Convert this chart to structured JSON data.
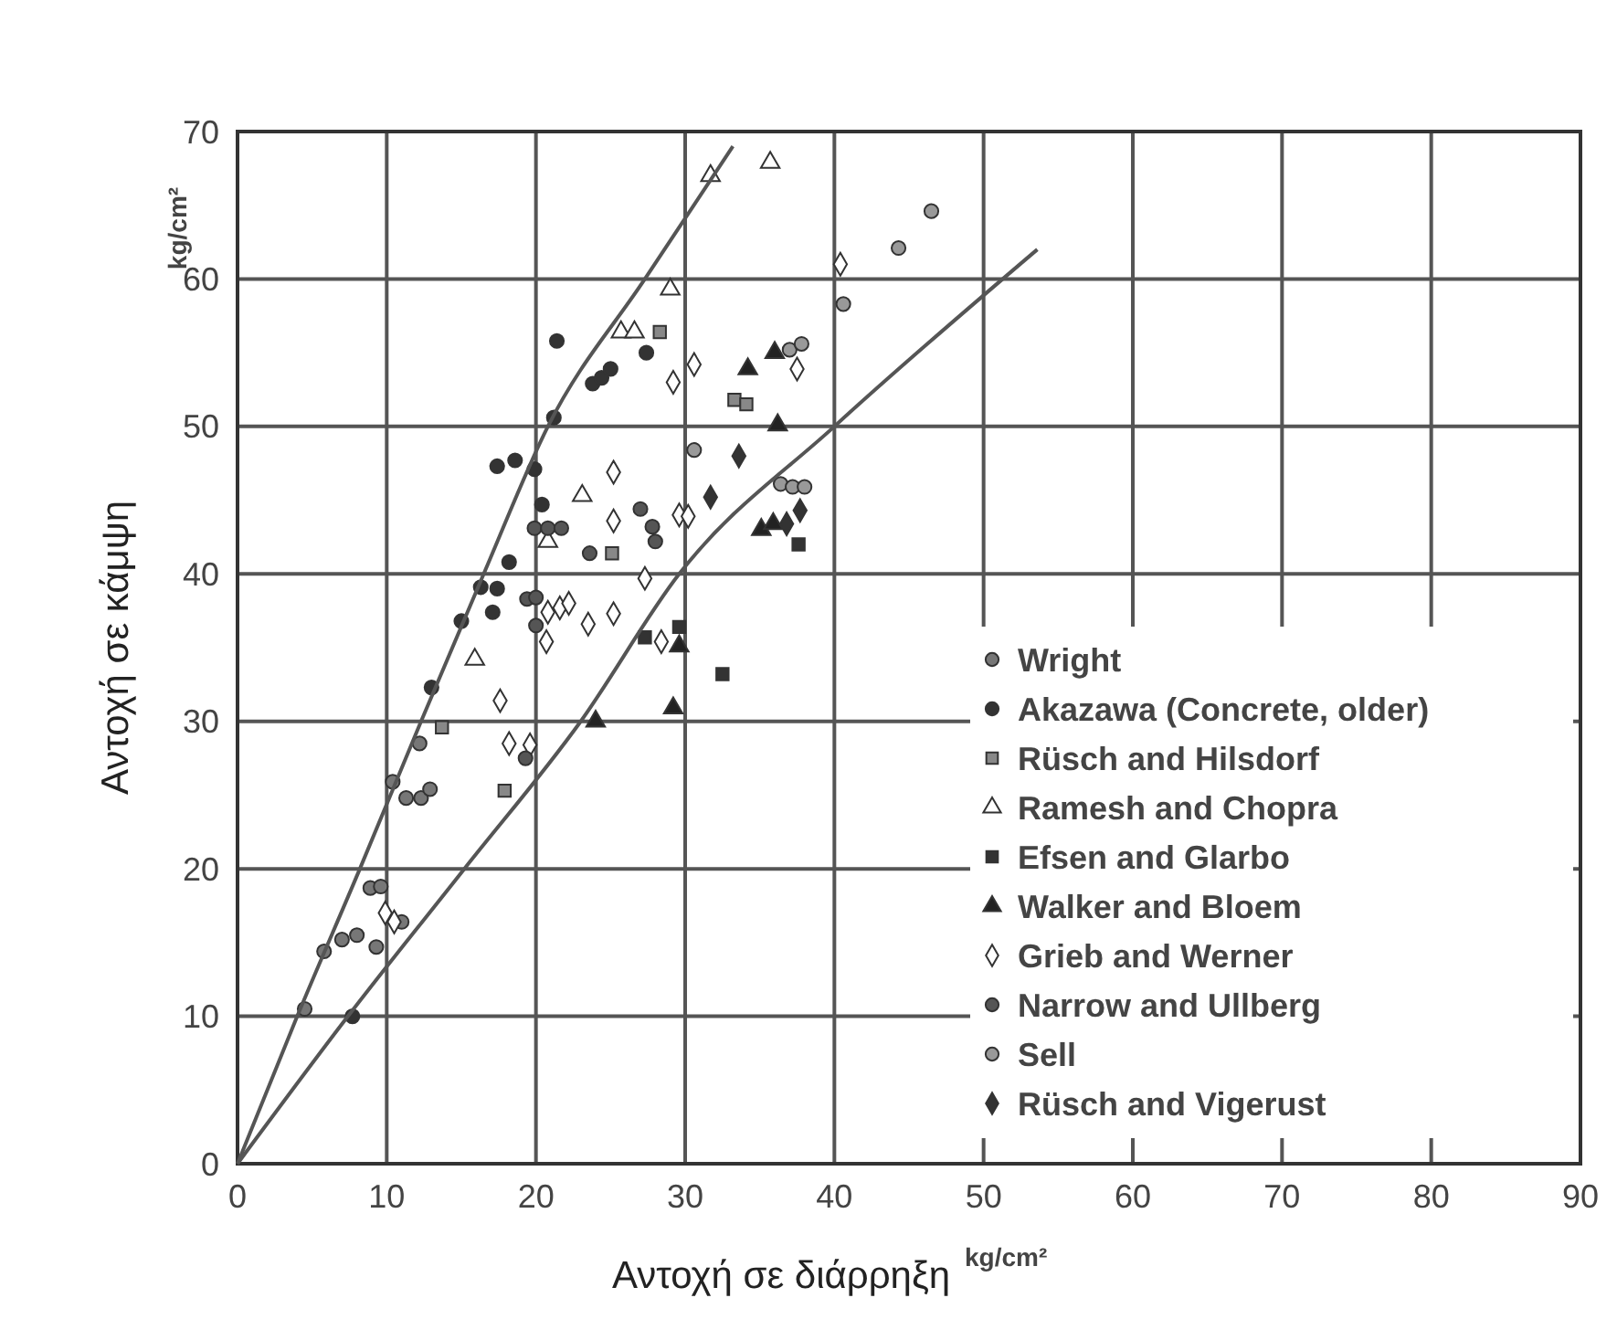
{
  "chart_data": {
    "type": "scatter",
    "xlabel": "Αντοχή σε διάρρηξη",
    "ylabel": "Αντοχή σε κάμψη",
    "annotations": [
      "kg/cm²",
      "kg/cm²"
    ],
    "xlim": [
      0,
      90
    ],
    "ylim": [
      0,
      70
    ],
    "xticks": [
      0,
      10,
      20,
      30,
      40,
      50,
      60,
      70,
      80,
      90
    ],
    "yticks": [
      0,
      10,
      20,
      30,
      40,
      50,
      60,
      70
    ],
    "grid": true,
    "legend": "bottom right",
    "series": [
      {
        "name": "Wright",
        "color": "#777777",
        "marker": "circle",
        "x": [
          4.5,
          5.8,
          7.0,
          8.0,
          8.9,
          9.6,
          9.3,
          11,
          10.4,
          11.3,
          12.3,
          12.9,
          12.2
        ],
        "values": [
          10.5,
          14.4,
          15.2,
          15.5,
          18.7,
          18.8,
          14.7,
          16.4,
          25.9,
          24.8,
          24.8,
          25.4,
          28.5
        ]
      },
      {
        "name": "Akazawa (Concrete, older)",
        "color": "#333333",
        "marker": "circle",
        "x": [
          7.7,
          13.0,
          15.0,
          16.3,
          17.4,
          17.1,
          17.4,
          18.6,
          19.9,
          21.4,
          21.2,
          23.8,
          24.4,
          25.0,
          27.4,
          20.4,
          18.2
        ],
        "values": [
          10.0,
          32.3,
          36.8,
          39.1,
          39.0,
          37.4,
          47.3,
          47.7,
          47.1,
          55.8,
          50.6,
          52.9,
          53.3,
          53.9,
          55.0,
          44.7,
          40.8
        ]
      },
      {
        "name": "Rüsch and Hilsdorf",
        "color": "#888888",
        "marker": "square",
        "x": [
          13.7,
          17.9,
          25.1,
          28.3,
          33.3,
          34.1
        ],
        "values": [
          29.6,
          25.3,
          41.4,
          56.4,
          51.8,
          51.5
        ]
      },
      {
        "name": "Ramesh and Chopra",
        "color": "#ffffff",
        "marker": "triangle",
        "x": [
          15.9,
          23.1,
          25.7,
          26.6,
          29.0,
          31.7,
          35.7,
          20.8
        ],
        "values": [
          34.2,
          45.3,
          56.4,
          56.4,
          59.3,
          67.0,
          67.9,
          42.2
        ]
      },
      {
        "name": "Efsen and Glarbo",
        "color": "#333333",
        "marker": "square",
        "x": [
          29.6,
          27.3,
          32.5,
          37.6
        ],
        "values": [
          36.4,
          35.7,
          33.2,
          42.0
        ]
      },
      {
        "name": "Walker and Bloem",
        "color": "#222222",
        "marker": "triangle",
        "x": [
          29.6,
          29.2,
          24.0,
          34.2,
          36.0,
          36.2,
          35.1,
          35.9
        ],
        "values": [
          35.1,
          30.9,
          30.0,
          53.9,
          55.0,
          50.1,
          43.0,
          43.4
        ]
      },
      {
        "name": "Grieb and Werner",
        "color": "#ffffff",
        "marker": "diamond",
        "x": [
          9.9,
          10.5,
          25.2,
          25.2,
          29.6,
          30.2,
          27.3,
          20.8,
          21.6,
          22.2,
          20.7,
          23.5,
          25.2,
          28.4,
          17.6,
          18.2,
          19.6,
          30.6,
          29.2,
          37.5,
          40.4
        ],
        "values": [
          17.0,
          16.4,
          46.9,
          43.6,
          44.0,
          43.9,
          39.7,
          37.4,
          37.7,
          38.0,
          35.4,
          36.6,
          37.3,
          35.4,
          31.4,
          28.5,
          28.4,
          54.2,
          53.0,
          53.9,
          61.0
        ]
      },
      {
        "name": "Narrow and Ullberg",
        "color": "#555555",
        "marker": "circle",
        "x": [
          19.9,
          20.8,
          21.7,
          23.6,
          19.4,
          20.0,
          20.0,
          19.3,
          27.0,
          27.8,
          28.0
        ],
        "values": [
          43.1,
          43.1,
          43.1,
          41.4,
          38.3,
          38.4,
          36.5,
          27.5,
          44.4,
          43.2,
          42.2
        ]
      },
      {
        "name": "Sell",
        "color": "#999999",
        "marker": "circle",
        "x": [
          30.6,
          40.6,
          44.3,
          46.5,
          36.4,
          37.2,
          38.0,
          37.0,
          37.8
        ],
        "values": [
          48.4,
          58.3,
          62.1,
          64.6,
          46.1,
          45.9,
          45.9,
          55.2,
          55.6
        ]
      },
      {
        "name": "Rüsch and Vigerust",
        "color": "#333333",
        "marker": "diamond",
        "x": [
          33.6,
          31.7,
          37.7,
          36.8
        ],
        "values": [
          48.0,
          45.2,
          44.3,
          43.4
        ]
      },
      {
        "type": "line",
        "color": "#555555",
        "marker": "none",
        "x": [
          0,
          4,
          8.2,
          12.3,
          16.5,
          20.8,
          27.3,
          33.2
        ],
        "values": [
          0,
          10,
          20,
          30,
          40,
          50,
          60,
          69
        ]
      },
      {
        "type": "line",
        "color": "#555555",
        "marker": "none",
        "x": [
          0,
          7.4,
          15.2,
          23,
          29.6,
          40,
          53.6
        ],
        "values": [
          0,
          10,
          20,
          30,
          40,
          50,
          62
        ]
      }
    ]
  }
}
